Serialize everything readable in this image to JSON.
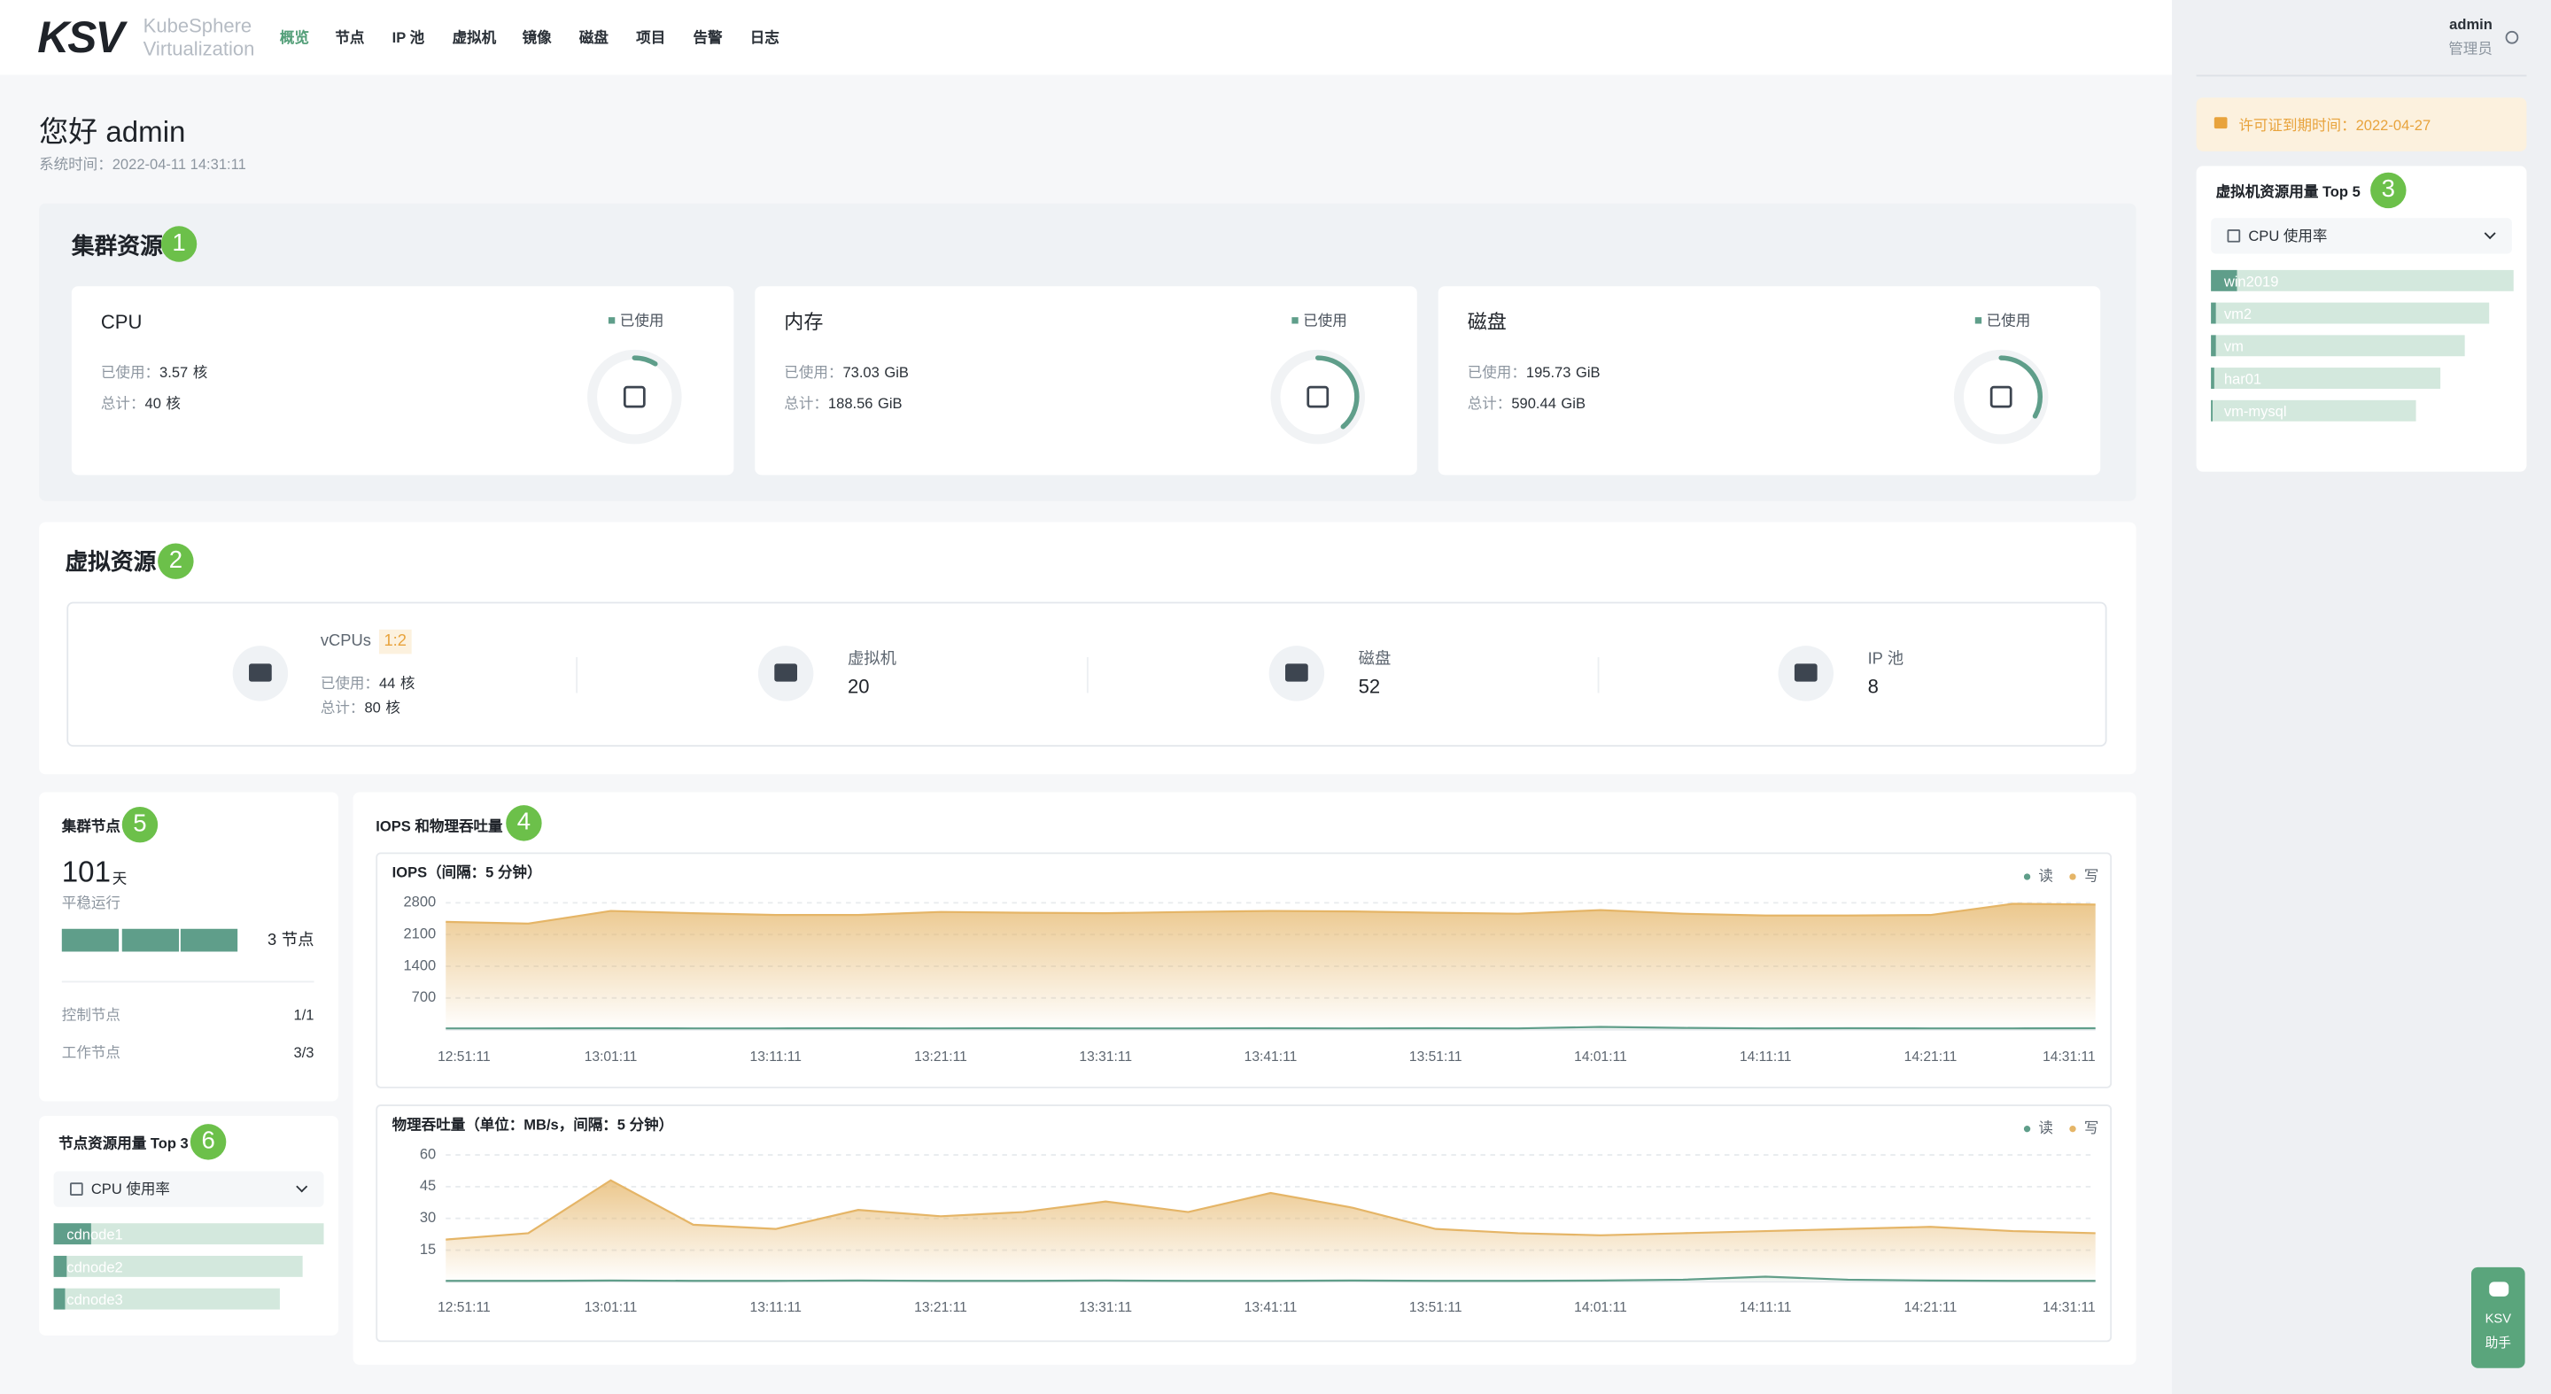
{
  "nav": {
    "logo": "KSV",
    "brand": [
      "KubeSphere",
      "Virtualization"
    ],
    "items": [
      "概览",
      "节点",
      "IP 池",
      "虚拟机",
      "镜像",
      "磁盘",
      "项目",
      "告警",
      "日志"
    ],
    "active": 0
  },
  "user": {
    "name": "admin",
    "role": "管理员"
  },
  "greeting": {
    "title": "您好 admin",
    "time": "系统时间：2022-04-11 14:31:11"
  },
  "cluster": {
    "title": "集群资源",
    "badge": 1,
    "legend": "已使用",
    "used_label": "已使用：",
    "total_label": "总计：",
    "cards": [
      {
        "name": "CPU",
        "used": 3.57,
        "total": 40,
        "unit": "核"
      },
      {
        "name": "内存",
        "used": 73.03,
        "total": 188.56,
        "unit": "GiB"
      },
      {
        "name": "磁盘",
        "used": 195.73,
        "total": 590.44,
        "unit": "GiB"
      }
    ]
  },
  "virtual": {
    "title": "虚拟资源",
    "badge": 2,
    "vcpu": {
      "name": "vCPUs",
      "ratio": "1:2",
      "used_label": "已使用：",
      "used": 44,
      "total_label": "总计：",
      "total": 80,
      "unit": "核"
    },
    "items": [
      {
        "name": "虚拟机",
        "value": 20
      },
      {
        "name": "磁盘",
        "value": 52
      },
      {
        "name": "IP 池",
        "value": 8
      }
    ]
  },
  "license": "许可证到期时间：2022-04-27",
  "vm_top": {
    "title": "虚拟机资源用量 Top 5",
    "badge": 3,
    "metric": "CPU 使用率",
    "names": [
      "win2019",
      "vm2",
      "vm",
      "har01",
      "vm-mysql"
    ],
    "values": [
      8.6,
      1.6,
      1.6,
      1.1,
      0.5
    ]
  },
  "nodes": {
    "title": "集群节点",
    "badge": 5,
    "days": 101,
    "days_unit": "天",
    "status": "平稳运行",
    "count": 3,
    "count_unit": "节点",
    "rows": [
      {
        "label": "控制节点",
        "value": "1/1"
      },
      {
        "label": "工作节点",
        "value": "3/3"
      }
    ]
  },
  "node_top": {
    "title": "节点资源用量 Top 3",
    "badge": 6,
    "metric": "CPU 使用率",
    "names": [
      "cdnode1",
      "cdnode2",
      "cdnode3"
    ],
    "values": [
      14,
      5,
      4
    ]
  },
  "io": {
    "title": "IOPS 和物理吞吐量",
    "badge": 4,
    "charts": [
      {
        "type": "area",
        "title": "IOPS（间隔：5 分钟）",
        "categories": [
          "12:51:11",
          null,
          "13:01:11",
          null,
          "13:11:11",
          null,
          "13:21:11",
          null,
          "13:31:11",
          null,
          "13:41:11",
          null,
          "13:51:11",
          null,
          "14:01:11",
          null,
          "14:11:11",
          null,
          "14:21:11",
          null,
          "14:31:11"
        ],
        "ylim": [
          0,
          2800
        ],
        "yticks": [
          700,
          1400,
          2100,
          2800
        ],
        "grid": true,
        "series": [
          {
            "name": "读",
            "color": "#5f9e8a",
            "values": [
              30,
              28,
              32,
              30,
              29,
              31,
              30,
              33,
              30,
              29,
              31,
              30,
              32,
              30,
              60,
              40,
              30,
              31,
              29,
              30,
              32
            ]
          },
          {
            "name": "写",
            "color": "#e5b567",
            "values": [
              2380,
              2340,
              2620,
              2570,
              2530,
              2530,
              2600,
              2580,
              2570,
              2600,
              2620,
              2610,
              2580,
              2560,
              2640,
              2560,
              2520,
              2520,
              2530,
              2780,
              2760
            ]
          }
        ]
      },
      {
        "type": "area",
        "title": "物理吞吐量（单位：MB/s，间隔：5 分钟）",
        "categories": [
          "12:51:11",
          null,
          "13:01:11",
          null,
          "13:11:11",
          null,
          "13:21:11",
          null,
          "13:31:11",
          null,
          "13:41:11",
          null,
          "13:51:11",
          null,
          "14:01:11",
          null,
          "14:11:11",
          null,
          "14:21:11",
          null,
          "14:31:11"
        ],
        "ylim": [
          0,
          60
        ],
        "yticks": [
          15,
          30,
          45,
          60
        ],
        "grid": true,
        "series": [
          {
            "name": "读",
            "color": "#5f9e8a",
            "values": [
              0.5,
              0.5,
              0.6,
              0.5,
              0.5,
              0.6,
              0.5,
              0.5,
              0.6,
              0.5,
              0.5,
              0.6,
              0.5,
              0.5,
              0.6,
              1,
              2.5,
              1,
              0.6,
              0.5,
              0.5
            ]
          },
          {
            "name": "写",
            "color": "#e5b567",
            "values": [
              20,
              23,
              48,
              27,
              25,
              34,
              31,
              33,
              38,
              33,
              42,
              35,
              25,
              23,
              22,
              23,
              24,
              25,
              26,
              24,
              23
            ]
          }
        ]
      }
    ]
  },
  "assistant": {
    "label": [
      "KSV",
      "助手"
    ]
  }
}
